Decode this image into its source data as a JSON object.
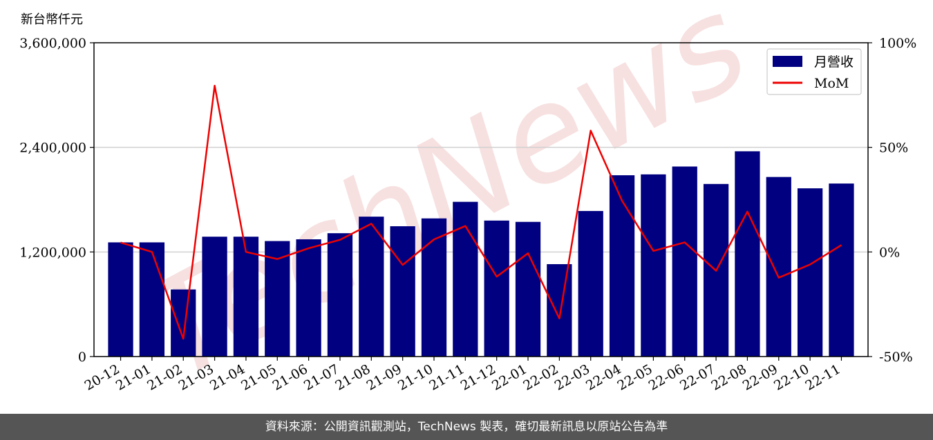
{
  "chart_data": {
    "type": "bar",
    "unit_label": "新台幣仟元",
    "categories": [
      "20-12",
      "21-01",
      "21-02",
      "21-03",
      "21-04",
      "21-05",
      "21-06",
      "21-07",
      "21-08",
      "21-09",
      "21-10",
      "21-11",
      "21-12",
      "22-01",
      "22-02",
      "22-03",
      "22-04",
      "22-05",
      "22-06",
      "22-07",
      "22-08",
      "22-09",
      "22-10",
      "22-11"
    ],
    "series": [
      {
        "name": "月營收",
        "axis": "left",
        "kind": "bar",
        "color": "#000080",
        "values": [
          1310000,
          1310000,
          770000,
          1375000,
          1375000,
          1325000,
          1345000,
          1415000,
          1605000,
          1495000,
          1585000,
          1775000,
          1560000,
          1545000,
          1060000,
          1670000,
          2080000,
          2090000,
          2180000,
          1980000,
          2355000,
          2060000,
          1930000,
          1985000
        ]
      },
      {
        "name": "MoM",
        "axis": "right",
        "kind": "line",
        "color": "#ee0000",
        "values": [
          4.5,
          0,
          -41.5,
          79.5,
          0,
          -3.4,
          1.8,
          5.8,
          13.5,
          -6.2,
          6.0,
          12.4,
          -11.8,
          -0.6,
          -31.8,
          58.0,
          24.5,
          0.5,
          4.6,
          -9.0,
          19.3,
          -12.3,
          -6.0,
          3.3
        ]
      }
    ],
    "ylim_left": [
      0,
      3600000
    ],
    "yticks_left": [
      "0",
      "1,200,000",
      "2,400,000",
      "3,600,000"
    ],
    "ylim_right": [
      -50,
      100
    ],
    "yticks_right": [
      "-50%",
      "0%",
      "50%",
      "100%"
    ],
    "grid": "horizontal",
    "legend_position": "top-right"
  },
  "colors": {
    "bar": "#000080",
    "line": "#ee0000",
    "footer_bg": "#555555",
    "watermark": "#f3d3d3"
  },
  "watermark_text": "TechNews",
  "footer_text": "資料來源：公開資訊觀測站，TechNews 製表，確切最新訊息以原站公告為準"
}
